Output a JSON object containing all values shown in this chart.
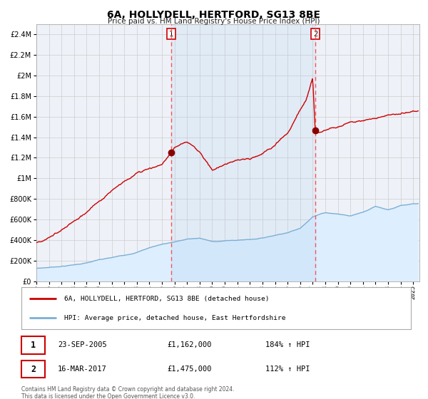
{
  "title": "6A, HOLLYDELL, HERTFORD, SG13 8BE",
  "subtitle": "Price paid vs. HM Land Registry's House Price Index (HPI)",
  "hpi_label": "HPI: Average price, detached house, East Hertfordshire",
  "prop_label": "6A, HOLLYDELL, HERTFORD, SG13 8BE (detached house)",
  "transaction1": {
    "label": "1",
    "date": "23-SEP-2005",
    "price": "£1,162,000",
    "hpi": "184% ↑ HPI",
    "year": 2005.73
  },
  "transaction2": {
    "label": "2",
    "date": "16-MAR-2017",
    "price": "£1,475,000",
    "hpi": "112% ↑ HPI",
    "year": 2017.21
  },
  "footer": "Contains HM Land Registry data © Crown copyright and database right 2024.\nThis data is licensed under the Open Government Licence v3.0.",
  "prop_color": "#cc0000",
  "hpi_color": "#7bafd4",
  "hpi_fill_color": "#ddeeff",
  "vline_color": "#ff4444",
  "marker_color": "#880000",
  "background_color": "#ffffff",
  "plot_bg_color": "#eef2f8",
  "grid_color": "#cccccc",
  "ylim": [
    0,
    2500000
  ],
  "xlim_start": 1995.0,
  "xlim_end": 2025.5,
  "hpi_waypoints_x": [
    1995,
    1996,
    1997,
    1998,
    1999,
    2000,
    2001,
    2002,
    2003,
    2004,
    2005,
    2006,
    2007,
    2008,
    2009,
    2010,
    2011,
    2012,
    2013,
    2014,
    2015,
    2016,
    2017,
    2018,
    2019,
    2020,
    2021,
    2022,
    2023,
    2024,
    2025
  ],
  "hpi_waypoints_y": [
    125000,
    135000,
    148000,
    163000,
    182000,
    210000,
    228000,
    252000,
    285000,
    330000,
    365000,
    390000,
    415000,
    425000,
    390000,
    400000,
    405000,
    415000,
    430000,
    460000,
    490000,
    530000,
    650000,
    690000,
    680000,
    660000,
    700000,
    760000,
    730000,
    770000,
    780000
  ],
  "prop_waypoints_x": [
    1995,
    1996,
    1997,
    1998,
    1999,
    2000,
    2001,
    2002,
    2003,
    2004,
    2005,
    2006,
    2007,
    2008,
    2009,
    2010,
    2011,
    2012,
    2013,
    2014,
    2015,
    2016,
    2016.5,
    2017.0,
    2017.21,
    2017.5,
    2018,
    2019,
    2020,
    2021,
    2022,
    2023,
    2024,
    2025
  ],
  "prop_waypoints_y": [
    375000,
    430000,
    520000,
    590000,
    680000,
    790000,
    870000,
    970000,
    1060000,
    1120000,
    1162000,
    1320000,
    1380000,
    1280000,
    1100000,
    1150000,
    1200000,
    1220000,
    1270000,
    1350000,
    1480000,
    1700000,
    1820000,
    2020000,
    1475000,
    1490000,
    1510000,
    1540000,
    1580000,
    1600000,
    1640000,
    1660000,
    1680000,
    1700000
  ]
}
